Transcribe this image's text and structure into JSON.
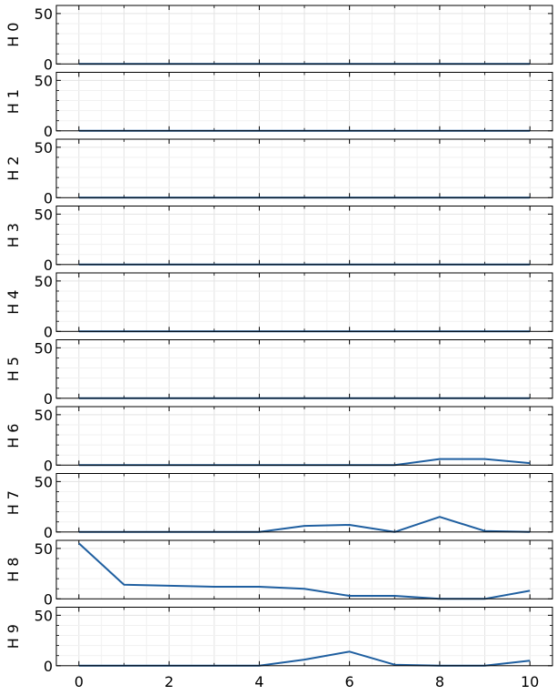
{
  "chart_data": {
    "type": "line",
    "layout": "stacked-subplots",
    "x": [
      0,
      1,
      2,
      3,
      4,
      5,
      6,
      7,
      8,
      9,
      10
    ],
    "xlim": [
      -0.5,
      10.5
    ],
    "xticks": [
      "0",
      "2",
      "4",
      "6",
      "8",
      "10"
    ],
    "ylim": [
      0,
      58
    ],
    "yticks": [
      "0",
      "50"
    ],
    "grid": true,
    "line_color": "#1f5fa0",
    "series": [
      {
        "name": "H 0",
        "values": [
          0,
          0,
          0,
          0,
          0,
          0,
          0,
          0,
          0,
          0,
          0
        ]
      },
      {
        "name": "H 1",
        "values": [
          0,
          0,
          0,
          0,
          0,
          0,
          0,
          0,
          0,
          0,
          0
        ]
      },
      {
        "name": "H 2",
        "values": [
          0,
          0,
          0,
          0,
          0,
          0,
          0,
          0,
          0,
          0,
          0
        ]
      },
      {
        "name": "H 3",
        "values": [
          0,
          0,
          0,
          0,
          0,
          0,
          0,
          0,
          0,
          0,
          0
        ]
      },
      {
        "name": "H 4",
        "values": [
          0,
          0,
          0,
          0,
          0,
          0,
          0,
          0,
          0,
          0,
          0
        ]
      },
      {
        "name": "H 5",
        "values": [
          0,
          0,
          0,
          0,
          0,
          0,
          0,
          0,
          0,
          0,
          0
        ]
      },
      {
        "name": "H 6",
        "values": [
          0,
          0,
          0,
          0,
          0,
          0,
          0,
          0,
          6,
          6,
          2
        ]
      },
      {
        "name": "H 7",
        "values": [
          0,
          0,
          0,
          0,
          0,
          6,
          7,
          0,
          15,
          1,
          0
        ]
      },
      {
        "name": "H 8",
        "values": [
          55,
          14,
          13,
          12,
          12,
          10,
          3,
          3,
          0,
          0,
          8
        ]
      },
      {
        "name": "H 9",
        "values": [
          0,
          0,
          0,
          0,
          0,
          6,
          14,
          1,
          0,
          0,
          5
        ]
      }
    ]
  }
}
